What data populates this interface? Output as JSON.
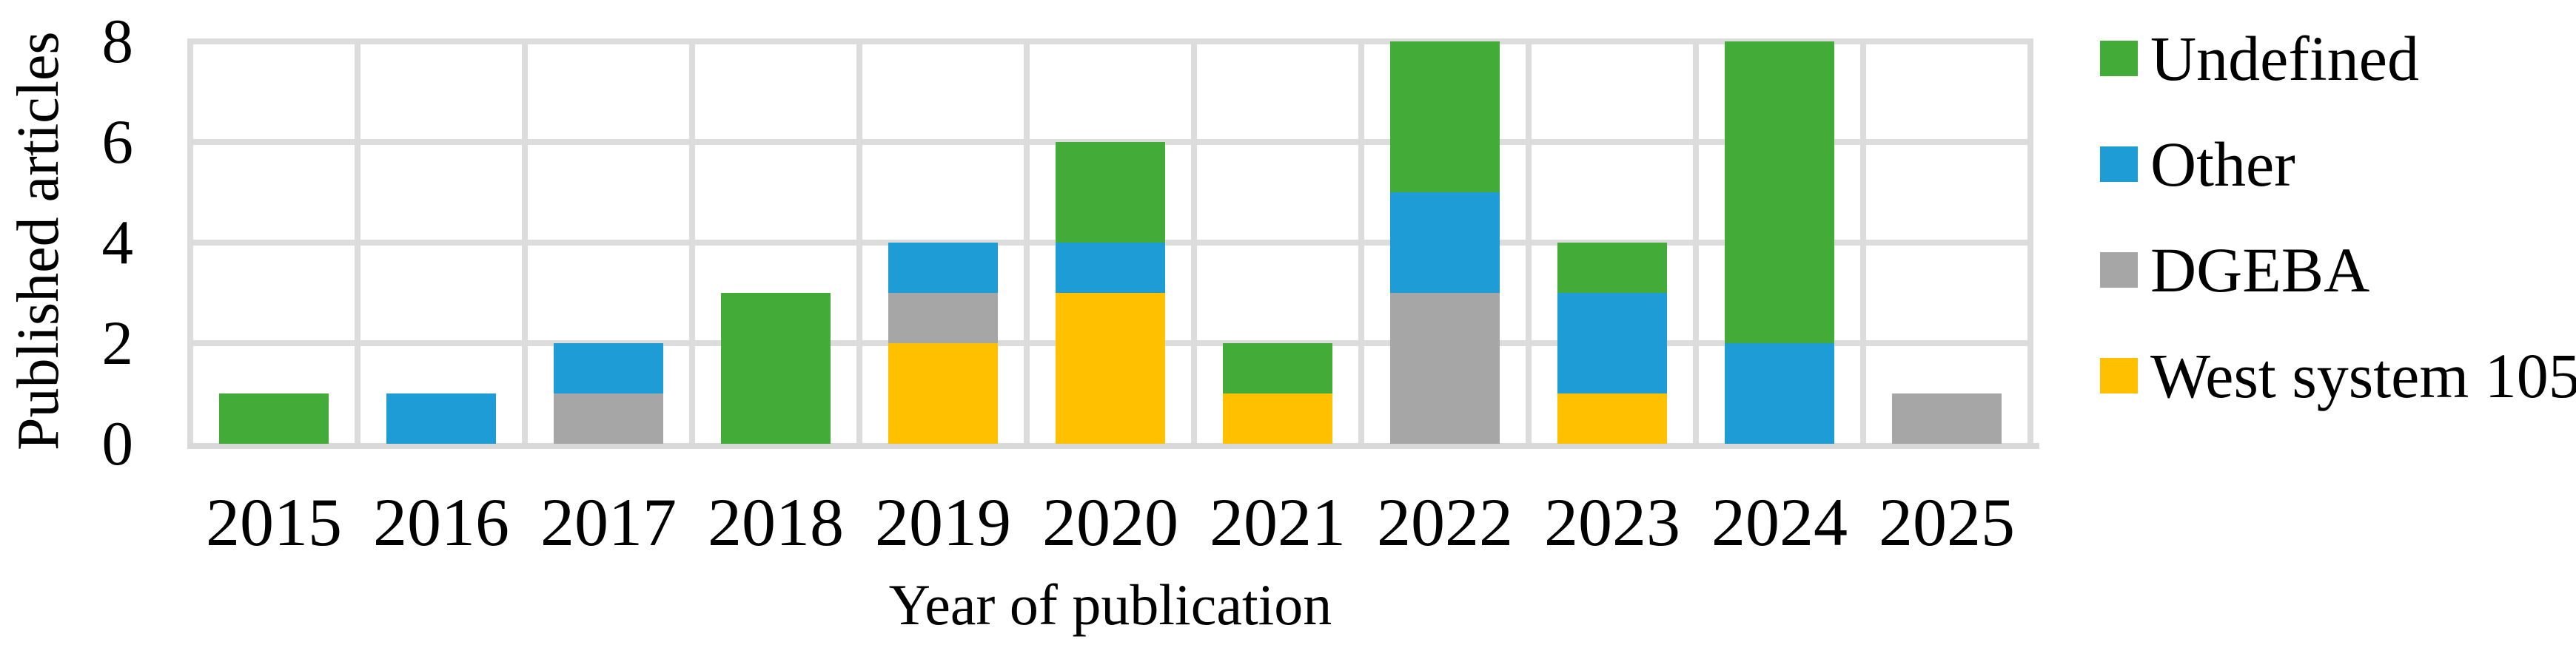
{
  "chart_data": {
    "type": "bar",
    "stacked": true,
    "title": "",
    "xlabel": "Year of publication",
    "ylabel": "Published articles",
    "ylim": [
      0,
      8
    ],
    "yticks": [
      0,
      2,
      4,
      6,
      8
    ],
    "grid": true,
    "legend_position": "right",
    "categories": [
      "2015",
      "2016",
      "2017",
      "2018",
      "2019",
      "2020",
      "2021",
      "2022",
      "2023",
      "2024",
      "2025"
    ],
    "series": [
      {
        "name": "Undefined",
        "color": "#43AC39",
        "values": [
          1,
          0,
          0,
          3,
          0,
          2,
          1,
          3,
          1,
          6,
          0
        ]
      },
      {
        "name": "Other",
        "color": "#1E9CD6",
        "values": [
          0,
          1,
          1,
          0,
          1,
          1,
          0,
          2,
          2,
          2,
          0
        ]
      },
      {
        "name": "DGEBA",
        "color": "#A6A6A6",
        "values": [
          0,
          0,
          1,
          0,
          1,
          0,
          0,
          3,
          0,
          0,
          1
        ]
      },
      {
        "name": "West system 105",
        "color": "#FFC000",
        "values": [
          0,
          0,
          0,
          0,
          2,
          3,
          1,
          0,
          1,
          0,
          0
        ]
      }
    ],
    "stack_order_bottom_to_top": [
      "West system 105",
      "DGEBA",
      "Other",
      "Undefined"
    ],
    "totals_by_year": [
      1,
      1,
      2,
      3,
      4,
      6,
      2,
      8,
      4,
      8,
      1
    ],
    "colors": {
      "gridline": "#DCDCDC",
      "axis_line": "#D9D9D9",
      "text": "#000000",
      "background": "#FFFFFF"
    }
  }
}
